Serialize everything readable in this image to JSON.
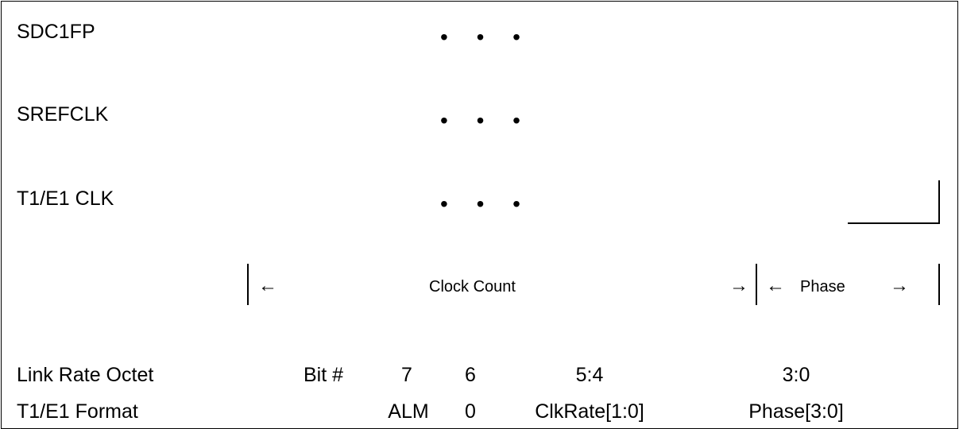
{
  "signals": [
    {
      "name": "SDC1FP",
      "ellipsis": "• • •"
    },
    {
      "name": "SREFCLK",
      "ellipsis": "• • •"
    },
    {
      "name": "T1/E1 CLK",
      "ellipsis": "• • •"
    }
  ],
  "span": {
    "left_arrow_1": "←",
    "clock_count": "Clock Count",
    "right_arrow_1": "→",
    "left_arrow_2": "←",
    "phase": "Phase",
    "right_arrow_2": "→"
  },
  "table": {
    "row1": {
      "label": "Link Rate Octet",
      "bitlabel": "Bit #",
      "c7": "7",
      "c6": "6",
      "c54": "5:4",
      "c30": "3:0"
    },
    "row2": {
      "label": "T1/E1 Format",
      "c7": "ALM",
      "c6": "0",
      "c54": "ClkRate[1:0]",
      "c30": "Phase[3:0]"
    }
  }
}
